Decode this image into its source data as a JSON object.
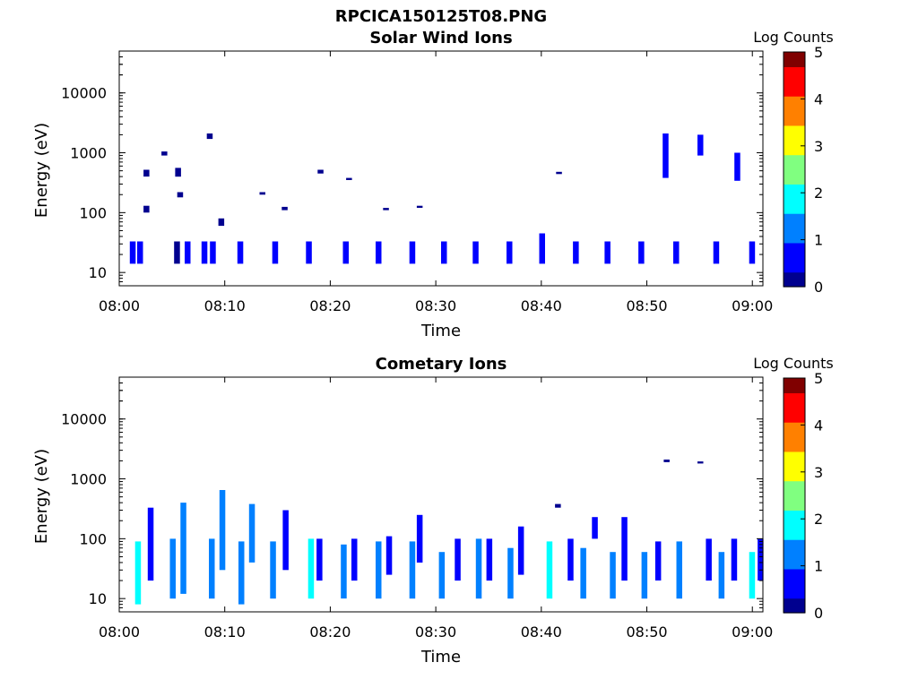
{
  "figure": {
    "title": "RPCICA150125T08.PNG",
    "colormap": [
      "#00008f",
      "#0000ff",
      "#0080ff",
      "#00ffff",
      "#80ff80",
      "#ffff00",
      "#ff8000",
      "#ff0000",
      "#800000"
    ]
  },
  "chart_data": [
    {
      "type": "heatmap",
      "title": "Solar Wind Ions",
      "xlabel": "Time",
      "ylabel": "Energy (eV)",
      "yscale": "log",
      "xlim": [
        0,
        61
      ],
      "ylim": [
        6,
        50000
      ],
      "xticks": [
        0,
        10,
        20,
        30,
        40,
        50,
        60
      ],
      "xtick_labels": [
        "08:00",
        "08:10",
        "08:20",
        "08:30",
        "08:40",
        "08:50",
        "09:00"
      ],
      "yticks": [
        10,
        100,
        1000,
        10000
      ],
      "ytick_labels": [
        "10",
        "100",
        "1000",
        "10000"
      ],
      "colorbar": {
        "label": "Log Counts",
        "range": [
          0,
          5
        ],
        "ticks": [
          "0",
          "1",
          "2",
          "3",
          "4",
          "5"
        ]
      },
      "cells": [
        [
          1.0,
          14,
          33,
          0.4
        ],
        [
          1.7,
          14,
          33,
          0.6
        ],
        [
          2.3,
          400,
          520,
          0.2
        ],
        [
          2.3,
          100,
          130,
          0.2
        ],
        [
          4.0,
          900,
          1050,
          0.2
        ],
        [
          5.2,
          14,
          33,
          0.3
        ],
        [
          5.3,
          400,
          560,
          0.3
        ],
        [
          5.5,
          180,
          220,
          0.2
        ],
        [
          6.2,
          14,
          33,
          0.5
        ],
        [
          7.8,
          14,
          33,
          0.4
        ],
        [
          8.3,
          1700,
          2100,
          0.2
        ],
        [
          8.6,
          14,
          33,
          0.4
        ],
        [
          9.4,
          60,
          80,
          0.1
        ],
        [
          11.2,
          14,
          33,
          0.5
        ],
        [
          13.3,
          200,
          220,
          0.2
        ],
        [
          14.5,
          14,
          33,
          0.6
        ],
        [
          15.4,
          110,
          125,
          0.2
        ],
        [
          17.7,
          14,
          33,
          0.5
        ],
        [
          18.8,
          450,
          520,
          0.2
        ],
        [
          21.2,
          14,
          33,
          0.5
        ],
        [
          21.5,
          350,
          380,
          0.2
        ],
        [
          24.3,
          14,
          33,
          0.6
        ],
        [
          25.0,
          110,
          120,
          0.2
        ],
        [
          27.5,
          14,
          33,
          0.7
        ],
        [
          28.2,
          120,
          130,
          0.2
        ],
        [
          30.5,
          14,
          33,
          0.5
        ],
        [
          33.5,
          14,
          33,
          0.6
        ],
        [
          36.7,
          14,
          33,
          0.5
        ],
        [
          39.8,
          14,
          45,
          0.6
        ],
        [
          41.4,
          440,
          480,
          0.2
        ],
        [
          43.0,
          14,
          33,
          0.7
        ],
        [
          46.0,
          14,
          33,
          0.7
        ],
        [
          49.2,
          14,
          33,
          0.6
        ],
        [
          51.5,
          380,
          2100,
          0.8
        ],
        [
          52.5,
          14,
          33,
          0.5
        ],
        [
          54.8,
          900,
          2000,
          0.8
        ],
        [
          56.3,
          14,
          33,
          0.4
        ],
        [
          58.3,
          340,
          1000,
          0.5
        ],
        [
          59.7,
          14,
          33,
          0.6
        ]
      ]
    },
    {
      "type": "heatmap",
      "title": "Cometary Ions",
      "xlabel": "Time",
      "ylabel": "Energy (eV)",
      "yscale": "log",
      "xlim": [
        0,
        61
      ],
      "ylim": [
        6,
        50000
      ],
      "xticks": [
        0,
        10,
        20,
        30,
        40,
        50,
        60
      ],
      "xtick_labels": [
        "08:00",
        "08:10",
        "08:20",
        "08:30",
        "08:40",
        "08:50",
        "09:00"
      ],
      "yticks": [
        10,
        100,
        1000,
        10000
      ],
      "ytick_labels": [
        "10",
        "100",
        "1000",
        "10000"
      ],
      "colorbar": {
        "label": "Log Counts",
        "range": [
          0,
          5
        ],
        "ticks": [
          "0",
          "1",
          "2",
          "3",
          "4",
          "5"
        ]
      },
      "cells": [
        [
          1.5,
          8,
          90,
          1.6
        ],
        [
          2.7,
          20,
          330,
          0.6
        ],
        [
          4.8,
          10,
          100,
          1.2
        ],
        [
          5.8,
          12,
          400,
          1.5
        ],
        [
          8.5,
          10,
          100,
          1.3
        ],
        [
          9.5,
          30,
          650,
          1.1
        ],
        [
          11.3,
          8,
          90,
          1.2
        ],
        [
          12.3,
          40,
          380,
          1.0
        ],
        [
          14.3,
          10,
          90,
          1.4
        ],
        [
          15.5,
          30,
          300,
          0.8
        ],
        [
          17.9,
          10,
          100,
          1.6
        ],
        [
          18.7,
          20,
          100,
          0.9
        ],
        [
          21.0,
          10,
          80,
          1.4
        ],
        [
          22.0,
          20,
          100,
          0.9
        ],
        [
          24.3,
          10,
          90,
          1.4
        ],
        [
          25.3,
          25,
          110,
          0.8
        ],
        [
          27.5,
          10,
          90,
          1.5
        ],
        [
          28.2,
          40,
          250,
          0.8
        ],
        [
          30.3,
          10,
          60,
          1.3
        ],
        [
          31.8,
          20,
          100,
          0.8
        ],
        [
          33.8,
          10,
          100,
          1.4
        ],
        [
          34.8,
          20,
          100,
          0.9
        ],
        [
          36.8,
          10,
          70,
          1.3
        ],
        [
          37.8,
          25,
          160,
          0.9
        ],
        [
          40.5,
          10,
          90,
          1.7
        ],
        [
          41.3,
          330,
          380,
          0.2
        ],
        [
          42.5,
          20,
          100,
          0.9
        ],
        [
          43.7,
          10,
          70,
          1.5
        ],
        [
          44.8,
          100,
          230,
          0.4
        ],
        [
          46.5,
          10,
          60,
          1.2
        ],
        [
          47.6,
          20,
          230,
          0.9
        ],
        [
          49.5,
          10,
          60,
          1.2
        ],
        [
          50.8,
          20,
          90,
          0.8
        ],
        [
          51.6,
          1900,
          2100,
          0.3
        ],
        [
          52.8,
          10,
          90,
          1.5
        ],
        [
          54.8,
          1800,
          1950,
          0.2
        ],
        [
          55.6,
          20,
          100,
          0.9
        ],
        [
          56.8,
          10,
          60,
          1.2
        ],
        [
          58.0,
          20,
          100,
          0.9
        ],
        [
          59.7,
          10,
          60,
          1.6
        ],
        [
          60.5,
          20,
          100,
          0.9
        ]
      ]
    }
  ]
}
